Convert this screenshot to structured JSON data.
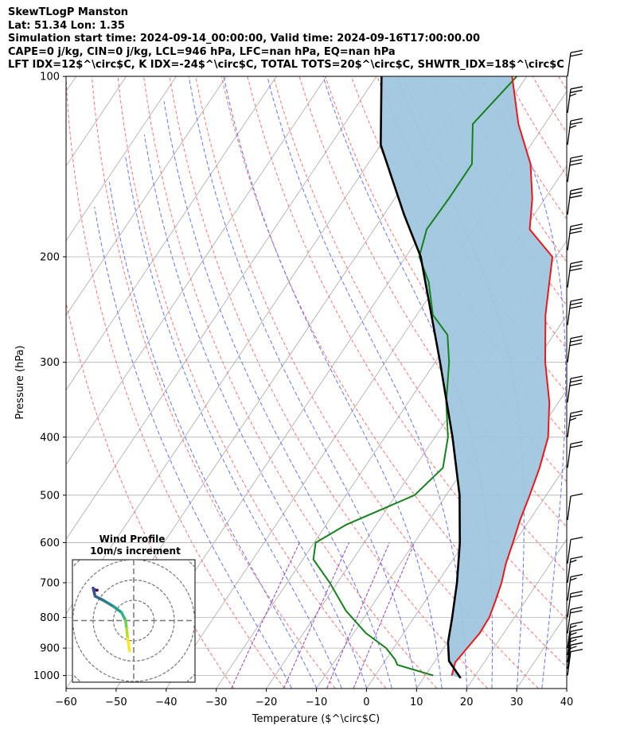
{
  "header": {
    "lines": [
      "SkewTLogP Manston",
      "Lat: 51.34   Lon: 1.35",
      "Simulation start time: 2024-09-14_00:00:00, Valid time: 2024-09-16T17:00:00.00",
      "CAPE=0 j/kg, CIN=0 j/kg, LCL=946 hPa, LFC=nan hPa, EQ=nan hPa",
      "LFT IDX=12$^\\circ$C, K IDX=-24$^\\circ$C, TOTAL TOTS=20$^\\circ$C, SHWTR_IDX=18$^\\circ$C"
    ]
  },
  "chart_data": {
    "type": "skewt-logp",
    "xlabel": "Temperature ($^\\circ$C)",
    "ylabel": "Pressure (hPa)",
    "xlim": [
      -60,
      40
    ],
    "ylim": [
      1050,
      100
    ],
    "x_ticks": [
      -60,
      -50,
      -40,
      -30,
      -20,
      -10,
      0,
      10,
      20,
      30,
      40
    ],
    "y_ticks": [
      1000,
      900,
      800,
      700,
      600,
      500,
      400,
      300,
      200,
      100
    ],
    "grid": true,
    "colors": {
      "temperature": "#e8191b",
      "dewpoint": "#15811a",
      "parcel": "#000000",
      "cape_cin_shading": "#a0c6df",
      "dry_adiabat": "#ff6060",
      "moist_adiabat": "#4f66ff",
      "mixing_ratio": "#9b3dbd",
      "isotherm": "#b0b0b0"
    },
    "series": [
      {
        "name": "Temperature",
        "points": [
          [
            15.3,
            1000
          ],
          [
            14.2,
            950
          ],
          [
            14.7,
            900
          ],
          [
            15.2,
            850
          ],
          [
            15.0,
            800
          ],
          [
            14.0,
            750
          ],
          [
            12.8,
            700
          ],
          [
            11.1,
            650
          ],
          [
            9.7,
            600
          ],
          [
            8.1,
            550
          ],
          [
            6.7,
            500
          ],
          [
            5.0,
            450
          ],
          [
            2.6,
            400
          ],
          [
            -1.8,
            350
          ],
          [
            -8.0,
            300
          ],
          [
            -14.3,
            250
          ],
          [
            -20.7,
            200
          ],
          [
            -28.9,
            180
          ],
          [
            -32.5,
            160
          ],
          [
            -37.5,
            140
          ],
          [
            -45.3,
            120
          ],
          [
            -52.9,
            100
          ]
        ]
      },
      {
        "name": "Dewpoint",
        "points": [
          [
            11.6,
            1000
          ],
          [
            3.0,
            960
          ],
          [
            1.8,
            940
          ],
          [
            -1.5,
            900
          ],
          [
            -7.5,
            850
          ],
          [
            -14.5,
            780
          ],
          [
            -21.5,
            700
          ],
          [
            -27.9,
            640
          ],
          [
            -29.7,
            600
          ],
          [
            -26.0,
            560
          ],
          [
            -16.3,
            500
          ],
          [
            -14.3,
            450
          ],
          [
            -17.4,
            400
          ],
          [
            -22.4,
            350
          ],
          [
            -27.2,
            300
          ],
          [
            -31.2,
            270
          ],
          [
            -36.8,
            250
          ],
          [
            -42.1,
            220
          ],
          [
            -47.3,
            200
          ],
          [
            -49.5,
            180
          ],
          [
            -49.2,
            160
          ],
          [
            -49.2,
            140
          ],
          [
            -54.4,
            120
          ],
          [
            -52.0,
            100
          ]
        ]
      },
      {
        "name": "Parcel",
        "points": [
          [
            17.4,
            1010
          ],
          [
            12.8,
            946
          ],
          [
            10.1,
            880
          ],
          [
            7.6,
            800
          ],
          [
            3.9,
            700
          ],
          [
            -0.9,
            600
          ],
          [
            -7.3,
            500
          ],
          [
            -16.5,
            400
          ],
          [
            -29.0,
            300
          ],
          [
            -47.0,
            200
          ],
          [
            -56.0,
            170
          ],
          [
            -70.0,
            130
          ],
          [
            -79.0,
            100
          ]
        ]
      }
    ],
    "wind_barbs": [
      {
        "p": 1000,
        "knots": 10
      },
      {
        "p": 975,
        "knots": 15
      },
      {
        "p": 950,
        "knots": 15
      },
      {
        "p": 925,
        "knots": 15
      },
      {
        "p": 900,
        "knots": 15
      },
      {
        "p": 850,
        "knots": 20
      },
      {
        "p": 800,
        "knots": 20
      },
      {
        "p": 750,
        "knots": 15
      },
      {
        "p": 700,
        "knots": 15
      },
      {
        "p": 650,
        "knots": 10
      },
      {
        "p": 550,
        "knots": 10
      },
      {
        "p": 450,
        "knots": 20
      },
      {
        "p": 400,
        "knots": 25
      },
      {
        "p": 350,
        "knots": 30
      },
      {
        "p": 300,
        "knots": 30
      },
      {
        "p": 260,
        "knots": 30
      },
      {
        "p": 225,
        "knots": 30
      },
      {
        "p": 195,
        "knots": 30
      },
      {
        "p": 170,
        "knots": 30
      },
      {
        "p": 150,
        "knots": 30
      },
      {
        "p": 130,
        "knots": 25
      },
      {
        "p": 115,
        "knots": 25
      },
      {
        "p": 100,
        "knots": 20
      }
    ],
    "hodograph": {
      "title": "Wind Profile",
      "subtitle": "10m/s increment",
      "rings": [
        1,
        2,
        3,
        4
      ],
      "points": [
        [
          -1.8,
          -1.5
        ],
        [
          -1.9,
          -1.5
        ],
        [
          -2.0,
          -1.6
        ],
        [
          -1.9,
          -1.2
        ],
        [
          -1.5,
          -1.0
        ],
        [
          -1.0,
          -0.7
        ],
        [
          -0.6,
          -0.4
        ],
        [
          -0.4,
          0.0
        ],
        [
          -0.35,
          0.4
        ],
        [
          -0.3,
          0.9
        ],
        [
          -0.25,
          1.2
        ],
        [
          -0.2,
          1.5
        ]
      ]
    }
  }
}
